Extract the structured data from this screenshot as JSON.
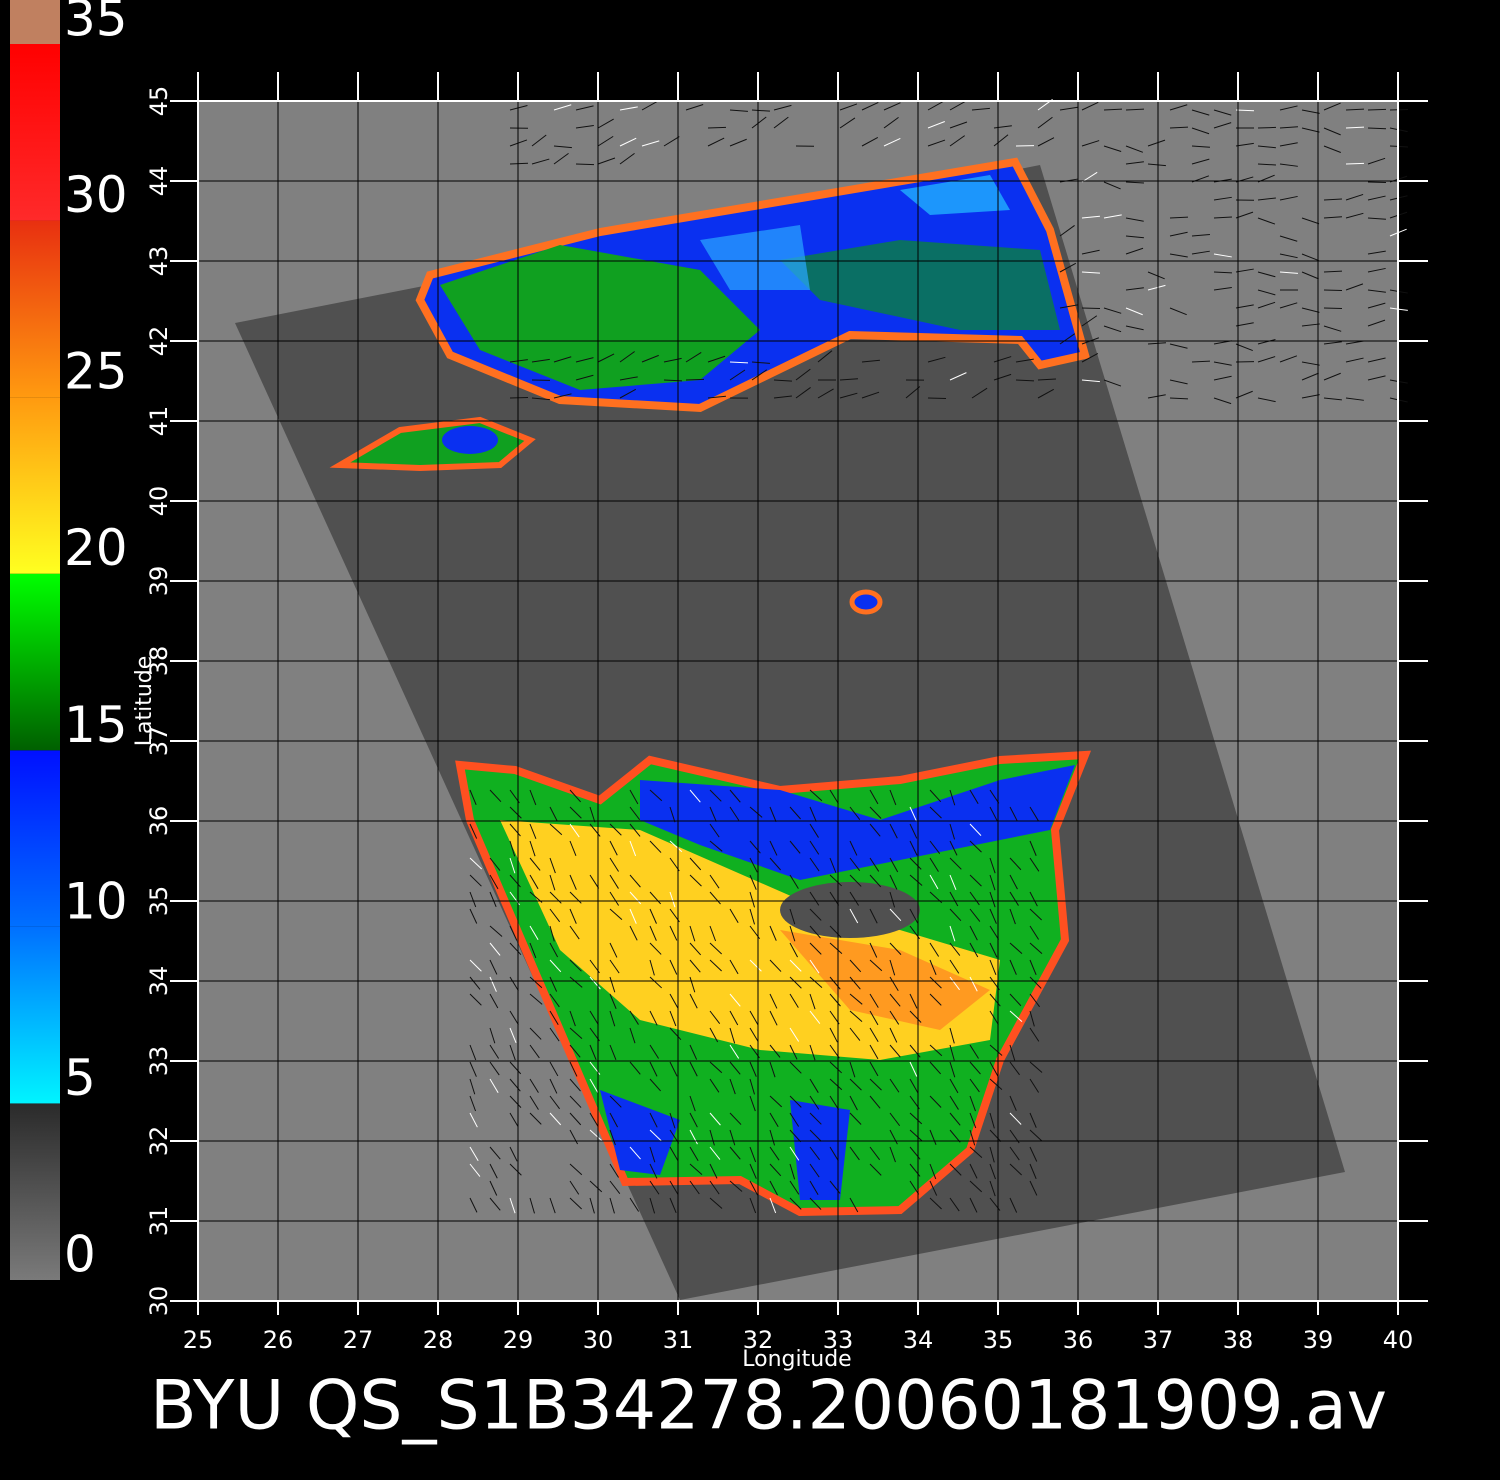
{
  "title": "BYU QS_S1B34278.20060181909.av",
  "map": {
    "xlabel": "Longitude",
    "ylabel": "Latitude",
    "xlim": [
      25,
      40
    ],
    "ylim": [
      30,
      45
    ],
    "xticks": [
      25,
      26,
      27,
      28,
      29,
      30,
      31,
      32,
      33,
      34,
      35,
      36,
      37,
      38,
      39,
      40
    ],
    "yticks": [
      30,
      31,
      32,
      33,
      34,
      35,
      36,
      37,
      38,
      39,
      40,
      41,
      42,
      43,
      44,
      45
    ],
    "grid": true
  },
  "colorbar": {
    "lim": [
      0,
      35
    ],
    "ticks": [
      0,
      5,
      10,
      15,
      20,
      25,
      30,
      35
    ],
    "colormap": [
      {
        "value": 0,
        "color": "#7a7a7a"
      },
      {
        "value": 5,
        "color": "#2a2a2a"
      },
      {
        "value": 5,
        "color": "#00f4ff"
      },
      {
        "value": 10,
        "color": "#0070ff"
      },
      {
        "value": 15,
        "color": "#0010ff"
      },
      {
        "value": 15,
        "color": "#006000"
      },
      {
        "value": 20,
        "color": "#00ff00"
      },
      {
        "value": 20,
        "color": "#ffff20"
      },
      {
        "value": 25,
        "color": "#ff9a10"
      },
      {
        "value": 30,
        "color": "#e83010"
      },
      {
        "value": 30,
        "color": "#ff2a2a"
      },
      {
        "value": 35,
        "color": "#ff0000"
      }
    ]
  }
}
